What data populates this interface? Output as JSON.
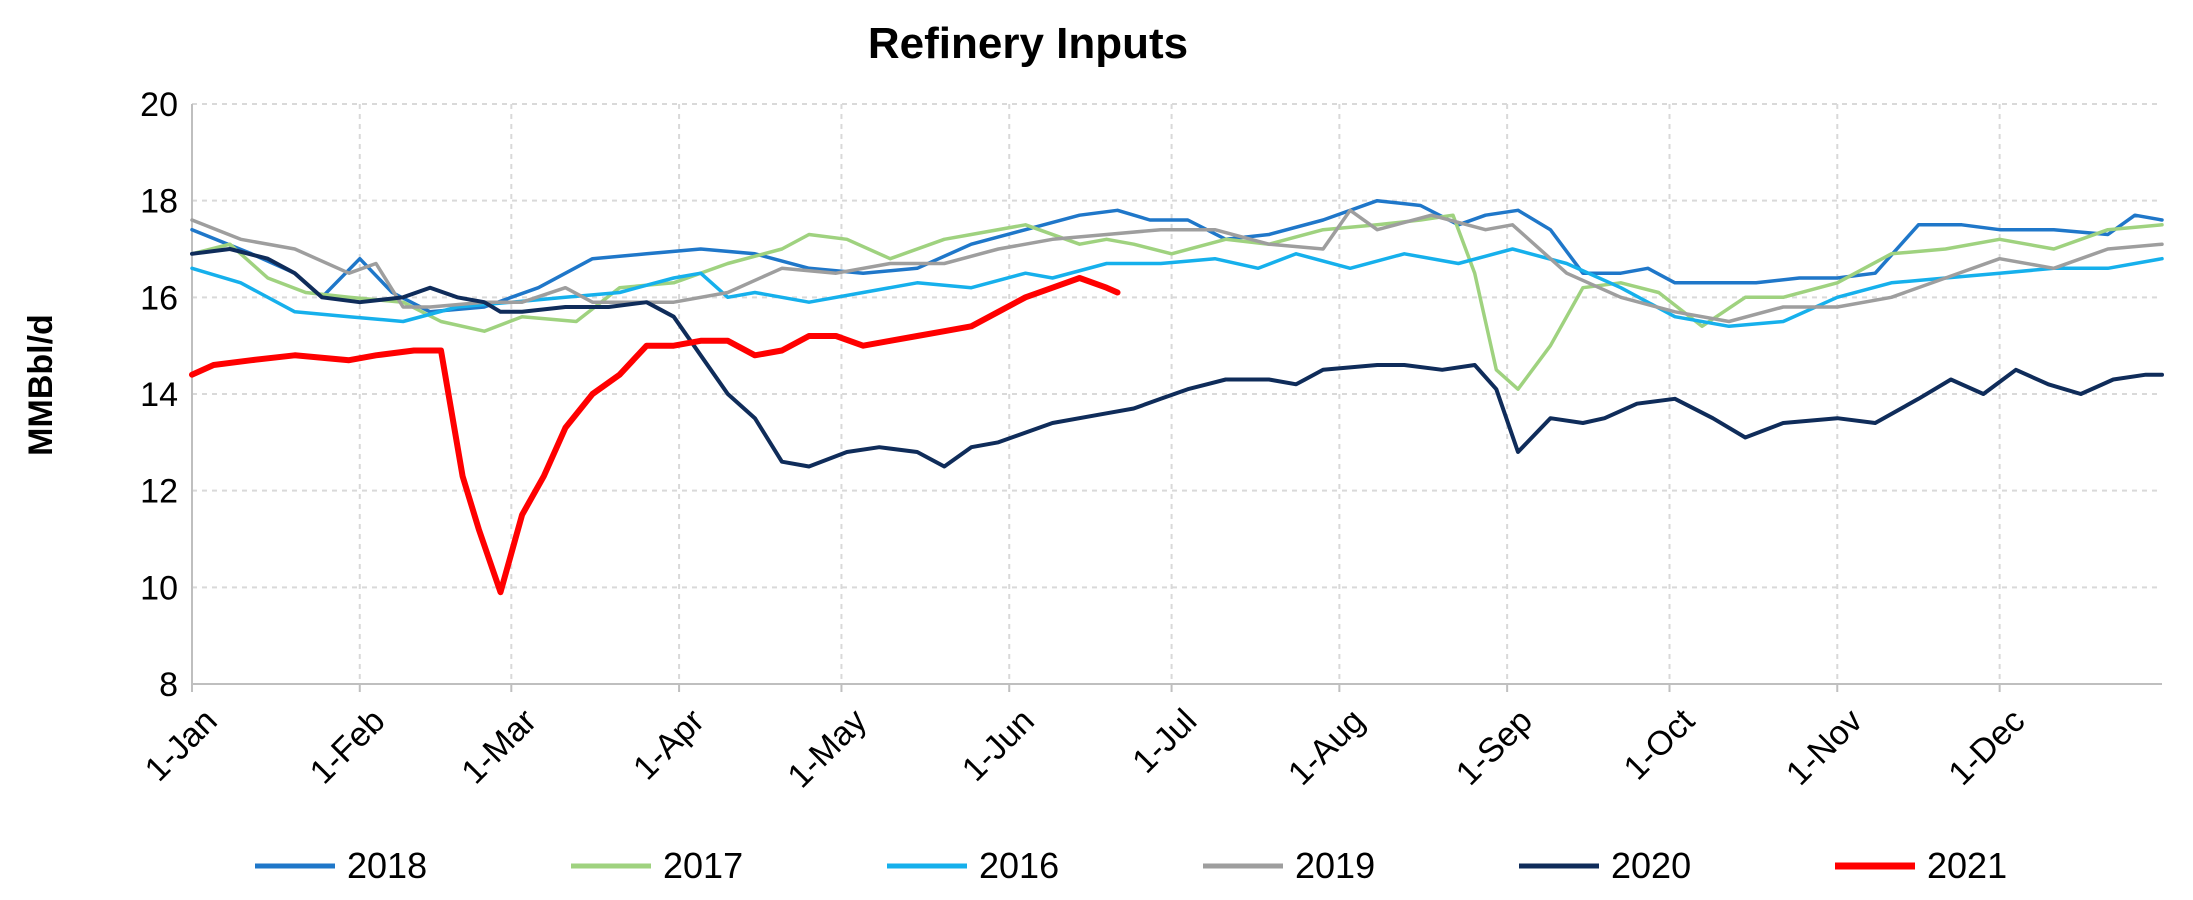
{
  "chart_data": {
    "type": "line",
    "title": "Refinery Inputs",
    "xlabel": "",
    "ylabel": "MMBbl/d",
    "ylim": [
      8,
      20
    ],
    "yticks": [
      "8",
      "10",
      "12",
      "14",
      "16",
      "18",
      "20"
    ],
    "xlim": [
      1,
      365
    ],
    "x_unit": "day of year",
    "xticks": [
      {
        "label": "1-Jan",
        "day": 1
      },
      {
        "label": "1-Feb",
        "day": 32
      },
      {
        "label": "1-Mar",
        "day": 60
      },
      {
        "label": "1-Apr",
        "day": 91
      },
      {
        "label": "1-May",
        "day": 121
      },
      {
        "label": "1-Jun",
        "day": 152
      },
      {
        "label": "1-Jul",
        "day": 182
      },
      {
        "label": "1-Aug",
        "day": 213
      },
      {
        "label": "1-Sep",
        "day": 244
      },
      {
        "label": "1-Oct",
        "day": 274
      },
      {
        "label": "1-Nov",
        "day": 305
      },
      {
        "label": "1-Dec",
        "day": 335
      }
    ],
    "grid": true,
    "legend_position": "bottom",
    "series": [
      {
        "name": "2018",
        "color": "#1f77c9",
        "x": [
          1,
          12,
          20,
          25,
          32,
          38,
          45,
          55,
          65,
          75,
          85,
          95,
          105,
          115,
          125,
          135,
          145,
          155,
          165,
          172,
          178,
          185,
          192,
          200,
          210,
          220,
          228,
          235,
          240,
          246,
          252,
          258,
          265,
          270,
          275,
          282,
          290,
          298,
          305,
          312,
          320,
          328,
          335,
          345,
          355,
          360,
          365
        ],
        "y": [
          17.4,
          16.9,
          16.5,
          16.0,
          16.8,
          16.1,
          15.7,
          15.8,
          16.2,
          16.8,
          16.9,
          17.0,
          16.9,
          16.6,
          16.5,
          16.6,
          17.1,
          17.4,
          17.7,
          17.8,
          17.6,
          17.6,
          17.2,
          17.3,
          17.6,
          18.0,
          17.9,
          17.5,
          17.7,
          17.8,
          17.4,
          16.5,
          16.5,
          16.6,
          16.3,
          16.3,
          16.3,
          16.4,
          16.4,
          16.5,
          17.5,
          17.5,
          17.4,
          17.4,
          17.3,
          17.7,
          17.6
        ]
      },
      {
        "name": "2017",
        "color": "#9fd27f",
        "x": [
          1,
          8,
          15,
          22,
          30,
          40,
          47,
          55,
          62,
          72,
          80,
          90,
          100,
          110,
          115,
          122,
          130,
          140,
          145,
          155,
          165,
          170,
          175,
          182,
          192,
          200,
          210,
          220,
          228,
          234,
          238,
          242,
          246,
          252,
          258,
          265,
          272,
          280,
          288,
          295,
          305,
          315,
          325,
          335,
          345,
          355,
          365
        ],
        "y": [
          16.9,
          17.1,
          16.4,
          16.1,
          16.0,
          15.9,
          15.5,
          15.3,
          15.6,
          15.5,
          16.2,
          16.3,
          16.7,
          17.0,
          17.3,
          17.2,
          16.8,
          17.2,
          17.3,
          17.5,
          17.1,
          17.2,
          17.1,
          16.9,
          17.2,
          17.1,
          17.4,
          17.5,
          17.6,
          17.7,
          16.5,
          14.5,
          14.1,
          15.0,
          16.2,
          16.3,
          16.1,
          15.4,
          16.0,
          16.0,
          16.3,
          16.9,
          17.0,
          17.2,
          17.0,
          17.4,
          17.5
        ]
      },
      {
        "name": "2016",
        "color": "#16b0ec",
        "x": [
          1,
          10,
          20,
          30,
          40,
          50,
          60,
          70,
          80,
          90,
          95,
          100,
          105,
          115,
          125,
          135,
          145,
          155,
          160,
          170,
          180,
          190,
          198,
          205,
          215,
          225,
          235,
          245,
          255,
          265,
          275,
          285,
          295,
          305,
          315,
          325,
          335,
          345,
          355,
          365
        ],
        "y": [
          16.6,
          16.3,
          15.7,
          15.6,
          15.5,
          15.8,
          15.9,
          16.0,
          16.1,
          16.4,
          16.5,
          16.0,
          16.1,
          15.9,
          16.1,
          16.3,
          16.2,
          16.5,
          16.4,
          16.7,
          16.7,
          16.8,
          16.6,
          16.9,
          16.6,
          16.9,
          16.7,
          17.0,
          16.7,
          16.2,
          15.6,
          15.4,
          15.5,
          16.0,
          16.3,
          16.4,
          16.5,
          16.6,
          16.6,
          16.8
        ]
      },
      {
        "name": "2019",
        "color": "#9e9e9e",
        "x": [
          1,
          10,
          20,
          30,
          35,
          40,
          45,
          55,
          62,
          70,
          75,
          80,
          90,
          100,
          110,
          120,
          130,
          140,
          150,
          160,
          170,
          180,
          190,
          200,
          210,
          215,
          220,
          230,
          240,
          245,
          255,
          265,
          275,
          285,
          295,
          305,
          315,
          325,
          335,
          345,
          355,
          365
        ],
        "y": [
          17.6,
          17.2,
          17.0,
          16.5,
          16.7,
          15.8,
          15.8,
          15.9,
          15.9,
          16.2,
          15.9,
          15.9,
          15.9,
          16.1,
          16.6,
          16.5,
          16.7,
          16.7,
          17.0,
          17.2,
          17.3,
          17.4,
          17.4,
          17.1,
          17.0,
          17.8,
          17.4,
          17.7,
          17.4,
          17.5,
          16.5,
          16.0,
          15.7,
          15.5,
          15.8,
          15.8,
          16.0,
          16.4,
          16.8,
          16.6,
          17.0,
          17.1
        ]
      },
      {
        "name": "2020",
        "color": "#0f2c5a",
        "x": [
          1,
          8,
          15,
          20,
          25,
          32,
          40,
          45,
          50,
          55,
          58,
          62,
          70,
          78,
          85,
          90,
          95,
          100,
          105,
          110,
          115,
          122,
          128,
          135,
          140,
          145,
          150,
          160,
          170,
          175,
          180,
          185,
          192,
          200,
          205,
          210,
          220,
          225,
          232,
          238,
          242,
          246,
          252,
          258,
          262,
          268,
          275,
          282,
          288,
          295,
          305,
          312,
          320,
          326,
          332,
          338,
          344,
          350,
          356,
          362,
          365
        ],
        "y": [
          16.9,
          17.0,
          16.8,
          16.5,
          16.0,
          15.9,
          16.0,
          16.2,
          16.0,
          15.9,
          15.7,
          15.7,
          15.8,
          15.8,
          15.9,
          15.6,
          14.8,
          14.0,
          13.5,
          12.6,
          12.5,
          12.8,
          12.9,
          12.8,
          12.5,
          12.9,
          13.0,
          13.4,
          13.6,
          13.7,
          13.9,
          14.1,
          14.3,
          14.3,
          14.2,
          14.5,
          14.6,
          14.6,
          14.5,
          14.6,
          14.1,
          12.8,
          13.5,
          13.4,
          13.5,
          13.8,
          13.9,
          13.5,
          13.1,
          13.4,
          13.5,
          13.4,
          13.9,
          14.3,
          14.0,
          14.5,
          14.2,
          14.0,
          14.3,
          14.4,
          14.4
        ]
      },
      {
        "name": "2021",
        "color": "#ff0000",
        "x": [
          1,
          5,
          12,
          20,
          30,
          35,
          42,
          47,
          51,
          54,
          58,
          62,
          66,
          70,
          75,
          80,
          85,
          90,
          95,
          100,
          105,
          110,
          115,
          120,
          125,
          130,
          135,
          140,
          145,
          150,
          155,
          160,
          165,
          170,
          172
        ],
        "y": [
          14.4,
          14.6,
          14.7,
          14.8,
          14.7,
          14.8,
          14.9,
          14.9,
          12.3,
          11.2,
          9.9,
          11.5,
          12.3,
          13.3,
          14.0,
          14.4,
          15.0,
          15.0,
          15.1,
          15.1,
          14.8,
          14.9,
          15.2,
          15.2,
          15.0,
          15.1,
          15.2,
          15.3,
          15.4,
          15.7,
          16.0,
          16.2,
          16.4,
          16.2,
          16.1
        ]
      }
    ]
  }
}
